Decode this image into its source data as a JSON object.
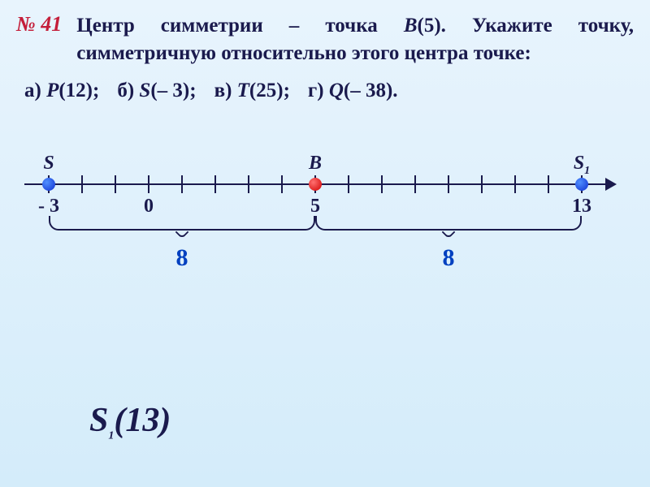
{
  "problem": {
    "number": "№ 41",
    "text_parts": [
      "Центр симметрии – точка ",
      "B",
      "(5). Укажите точку, симметричную относительно этого центра точке:"
    ],
    "text_fontsize": 25,
    "number_color": "#c41e3a",
    "text_color": "#1a1a4d"
  },
  "options": {
    "a_label": "а)",
    "a_point": "P",
    "a_value": "(12);",
    "b_label": "б)",
    "b_point": "S",
    "b_value": "(– 3);",
    "c_label": "в)",
    "c_point": "T",
    "c_value": "(25);",
    "d_label": "г)",
    "d_point": "Q",
    "d_value": "(– 38)."
  },
  "numberline": {
    "axis_color": "#1a1a4d",
    "tick_count": 17,
    "tick_start_x": 40,
    "tick_spacing_px": 41,
    "value_start": -3,
    "points": [
      {
        "label": "S",
        "value": -3,
        "label_text": "- 3",
        "color": "blue",
        "sub": ""
      },
      {
        "label": "B",
        "value": 5,
        "label_text": "5",
        "color": "red",
        "sub": ""
      },
      {
        "label": "S",
        "value": 13,
        "label_text": "13",
        "color": "blue",
        "sub": "1"
      }
    ],
    "extra_labels": [
      {
        "value": 0,
        "text": "0"
      }
    ],
    "braces": [
      {
        "from": -3,
        "to": 5,
        "label": "8",
        "label_color": "#0040c0"
      },
      {
        "from": 5,
        "to": 13,
        "label": "8",
        "label_color": "#0040c0"
      }
    ]
  },
  "answer": {
    "point": "S",
    "sub": "1",
    "value": "(13)"
  }
}
